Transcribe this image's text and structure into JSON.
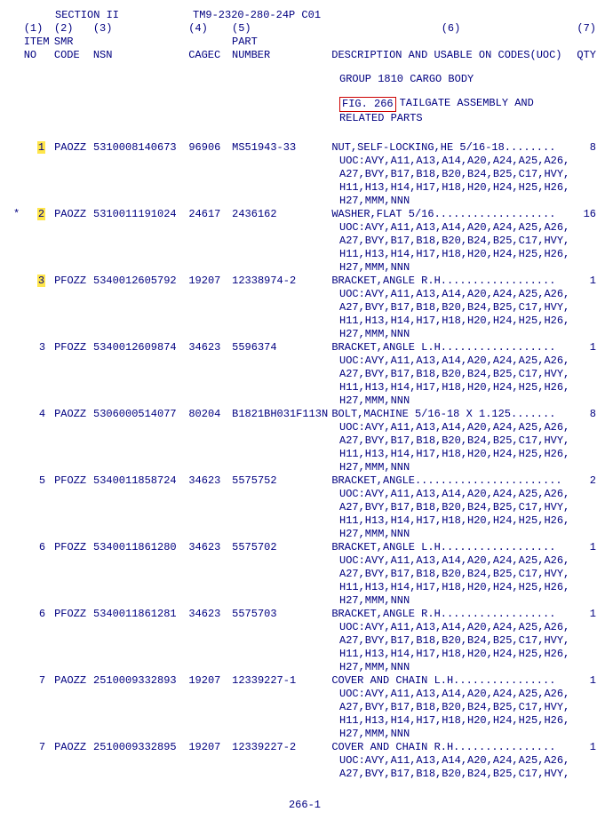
{
  "header": {
    "section_label": "SECTION II",
    "tm_number": "TM9-2320-280-24P",
    "rev": "C01",
    "col1": "(1)",
    "col2": "(2)",
    "col3": "(3)",
    "col4": "(4)",
    "col5": "(5)",
    "col6": "(6)",
    "col7": "(7)",
    "item_label": "ITEM",
    "smr_label": "SMR",
    "part_label": "PART",
    "no_label": "NO",
    "code_label": "CODE",
    "nsn_label": "NSN",
    "cagec_label": "CAGEC",
    "number_label": "NUMBER",
    "desc_label": "DESCRIPTION AND USABLE ON CODES(UOC)",
    "qty_label": "QTY"
  },
  "group_title": "GROUP 1810 CARGO BODY",
  "figure": {
    "ref": "FIG. 266",
    "title_part": " TAILGATE ASSEMBLY AND",
    "related": "RELATED PARTS"
  },
  "uoc_lines": [
    "UOC:AVY,A11,A13,A14,A20,A24,A25,A26,",
    "A27,BVY,B17,B18,B20,B24,B25,C17,HVY,",
    "H11,H13,H14,H17,H18,H20,H24,H25,H26,",
    "H27,MMM,NNN"
  ],
  "rows": [
    {
      "mark": "",
      "hl": true,
      "item": "1",
      "smr": "PAOZZ",
      "nsn": "5310008140673",
      "cagec": "96906",
      "part": "MS51943-33",
      "desc": "NUT,SELF-LOCKING,HE  5/16-18........",
      "qty": "8"
    },
    {
      "mark": "*",
      "hl": true,
      "item": "2",
      "smr": "PAOZZ",
      "nsn": "5310011191024",
      "cagec": "24617",
      "part": "2436162",
      "desc": "WASHER,FLAT  5/16...................",
      "qty": "16"
    },
    {
      "mark": "",
      "hl": true,
      "item": "3",
      "smr": "PFOZZ",
      "nsn": "5340012605792",
      "cagec": "19207",
      "part": "12338974-2",
      "desc": "BRACKET,ANGLE  R.H..................",
      "qty": "1"
    },
    {
      "mark": "",
      "hl": false,
      "item": "3",
      "smr": "PFOZZ",
      "nsn": "5340012609874",
      "cagec": "34623",
      "part": "5596374",
      "desc": "BRACKET,ANGLE  L.H..................",
      "qty": "1"
    },
    {
      "mark": "",
      "hl": false,
      "item": "4",
      "smr": "PAOZZ",
      "nsn": "5306000514077",
      "cagec": "80204",
      "part": "B1821BH031F113N",
      "desc": "BOLT,MACHINE  5/16-18 X 1.125.......",
      "qty": "8"
    },
    {
      "mark": "",
      "hl": false,
      "item": "5",
      "smr": "PFOZZ",
      "nsn": "5340011858724",
      "cagec": "34623",
      "part": "5575752",
      "desc": "BRACKET,ANGLE.......................",
      "qty": "2"
    },
    {
      "mark": "",
      "hl": false,
      "item": "6",
      "smr": "PFOZZ",
      "nsn": "5340011861280",
      "cagec": "34623",
      "part": "5575702",
      "desc": "BRACKET,ANGLE  L.H..................",
      "qty": "1"
    },
    {
      "mark": "",
      "hl": false,
      "item": "6",
      "smr": "PFOZZ",
      "nsn": "5340011861281",
      "cagec": "34623",
      "part": "5575703",
      "desc": "BRACKET,ANGLE  R.H..................",
      "qty": "1"
    },
    {
      "mark": "",
      "hl": false,
      "item": "7",
      "smr": "PAOZZ",
      "nsn": "2510009332893",
      "cagec": "19207",
      "part": "12339227-1",
      "desc": "COVER AND CHAIN  L.H................",
      "qty": "1"
    },
    {
      "mark": "",
      "hl": false,
      "item": "7",
      "smr": "PAOZZ",
      "nsn": "2510009332895",
      "cagec": "19207",
      "part": "12339227-2",
      "desc": "COVER AND CHAIN  R.H................",
      "qty": "1",
      "uoc_limit": 2
    }
  ],
  "page_number": "266-1"
}
